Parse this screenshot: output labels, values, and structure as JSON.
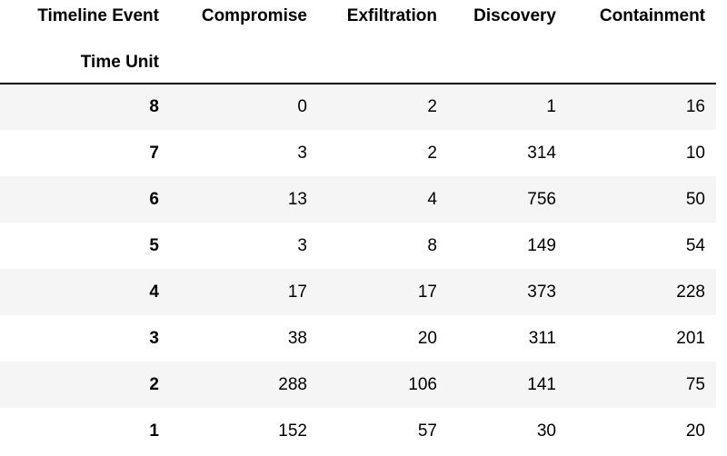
{
  "table": {
    "columns_name": "Timeline Event",
    "index_name": "Time Unit",
    "columns": [
      "Compromise",
      "Exfiltration",
      "Discovery",
      "Containment"
    ],
    "rows": [
      {
        "index": 8,
        "values": [
          0,
          2,
          1,
          16
        ]
      },
      {
        "index": 7,
        "values": [
          3,
          2,
          314,
          10
        ]
      },
      {
        "index": 6,
        "values": [
          13,
          4,
          756,
          50
        ]
      },
      {
        "index": 5,
        "values": [
          3,
          8,
          149,
          54
        ]
      },
      {
        "index": 4,
        "values": [
          17,
          17,
          373,
          228
        ]
      },
      {
        "index": 3,
        "values": [
          38,
          20,
          311,
          201
        ]
      },
      {
        "index": 2,
        "values": [
          288,
          106,
          141,
          75
        ]
      },
      {
        "index": 1,
        "values": [
          152,
          57,
          30,
          20
        ]
      }
    ]
  }
}
